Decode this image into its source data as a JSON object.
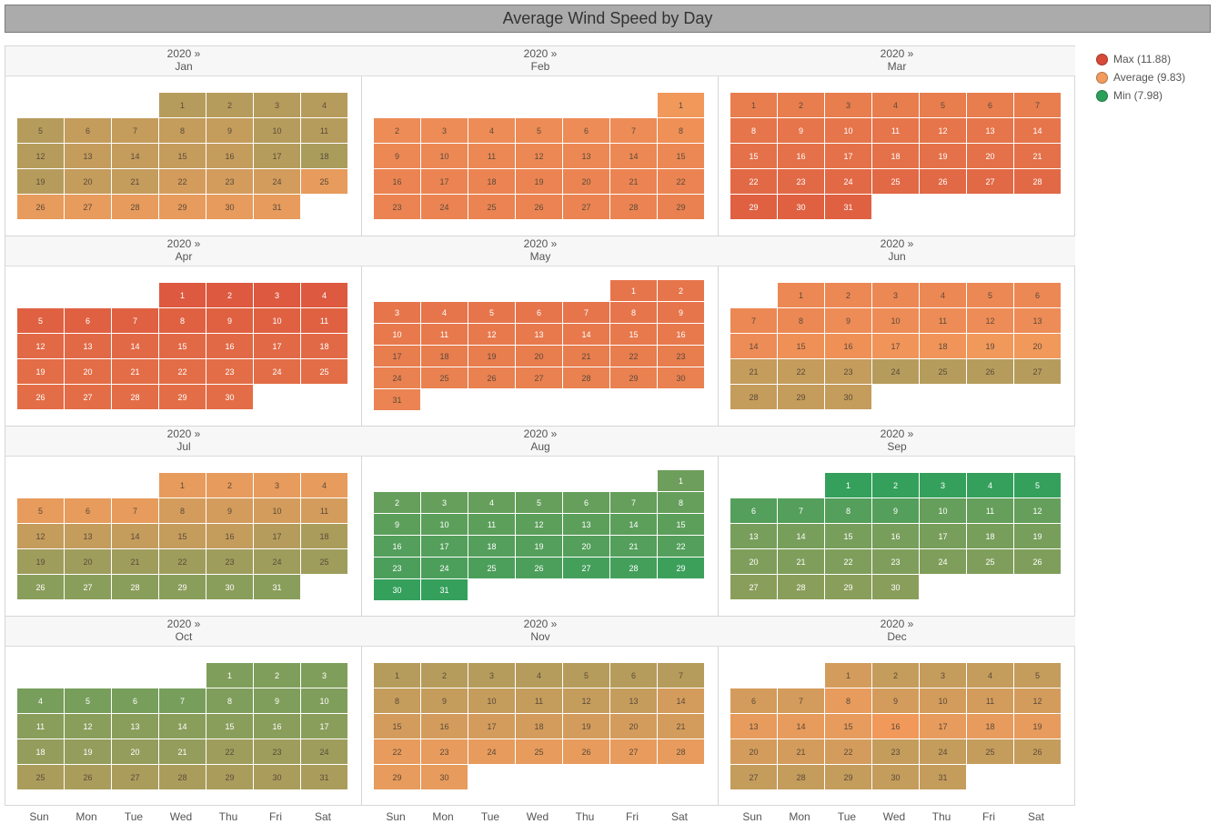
{
  "title": "Average Wind Speed by Day",
  "colors": {
    "max": "#d84a38",
    "average": "#f29b5c",
    "min": "#2ba05b"
  },
  "legend": [
    {
      "label": "Max (11.88)",
      "color": "#d84a38"
    },
    {
      "label": "Average (9.83)",
      "color": "#f29b5c"
    },
    {
      "label": "Min (7.98)",
      "color": "#2ba05b"
    }
  ],
  "weekdays": [
    "Sun",
    "Mon",
    "Tue",
    "Wed",
    "Thu",
    "Fri",
    "Sat"
  ],
  "months": [
    {
      "year": "2020 »",
      "name": "Jan"
    },
    {
      "year": "2020 »",
      "name": "Feb"
    },
    {
      "year": "2020 »",
      "name": "Mar"
    },
    {
      "year": "2020 »",
      "name": "Apr"
    },
    {
      "year": "2020 »",
      "name": "May"
    },
    {
      "year": "2020 »",
      "name": "Jun"
    },
    {
      "year": "2020 »",
      "name": "Jul"
    },
    {
      "year": "2020 »",
      "name": "Aug"
    },
    {
      "year": "2020 »",
      "name": "Sep"
    },
    {
      "year": "2020 »",
      "name": "Oct"
    },
    {
      "year": "2020 »",
      "name": "Nov"
    },
    {
      "year": "2020 »",
      "name": "Dec"
    }
  ],
  "chart_data": {
    "type": "heatmap",
    "title": "Average Wind Speed by Day",
    "year": 2020,
    "color_scale": {
      "min": 7.98,
      "average": 9.83,
      "max": 11.88
    },
    "months": [
      {
        "name": "Jan",
        "start_weekday": 3,
        "values": [
          9.5,
          9.5,
          9.5,
          9.5,
          9.5,
          9.6,
          9.6,
          9.6,
          9.6,
          9.5,
          9.5,
          9.5,
          9.6,
          9.6,
          9.6,
          9.6,
          9.5,
          9.4,
          9.5,
          9.6,
          9.6,
          9.7,
          9.7,
          9.7,
          9.8,
          9.8,
          9.8,
          9.8,
          9.8,
          9.8,
          9.8
        ]
      },
      {
        "name": "Feb",
        "start_weekday": 6,
        "values": [
          9.9,
          10.2,
          10.2,
          10.2,
          10.2,
          10.2,
          10.2,
          10.1,
          10.3,
          10.3,
          10.3,
          10.3,
          10.3,
          10.3,
          10.3,
          10.4,
          10.4,
          10.4,
          10.4,
          10.4,
          10.4,
          10.4,
          10.4,
          10.4,
          10.4,
          10.4,
          10.4,
          10.4,
          10.5
        ]
      },
      {
        "name": "Mar",
        "start_weekday": 0,
        "values": [
          10.6,
          10.6,
          10.6,
          10.6,
          10.6,
          10.6,
          10.6,
          10.8,
          10.8,
          10.8,
          10.8,
          10.8,
          10.8,
          10.8,
          10.9,
          10.9,
          10.9,
          10.9,
          10.9,
          10.9,
          10.9,
          11.1,
          11.1,
          11.1,
          11.1,
          11.1,
          11.1,
          11.1,
          11.3,
          11.3,
          11.3
        ]
      },
      {
        "name": "Apr",
        "start_weekday": 3,
        "values": [
          11.5,
          11.5,
          11.5,
          11.5,
          11.3,
          11.3,
          11.3,
          11.3,
          11.3,
          11.3,
          11.3,
          11.1,
          11.1,
          11.1,
          11.1,
          11.1,
          11.1,
          11.1,
          11.0,
          11.0,
          11.0,
          11.0,
          11.0,
          11.0,
          11.0,
          11.0,
          11.0,
          11.0,
          11.0,
          11.0
        ]
      },
      {
        "name": "May",
        "start_weekday": 5,
        "values": [
          10.8,
          10.8,
          10.8,
          10.8,
          10.8,
          10.8,
          10.8,
          10.8,
          10.8,
          10.7,
          10.7,
          10.7,
          10.7,
          10.7,
          10.7,
          10.7,
          10.6,
          10.6,
          10.6,
          10.6,
          10.6,
          10.6,
          10.6,
          10.5,
          10.5,
          10.5,
          10.5,
          10.5,
          10.5,
          10.5,
          10.4
        ]
      },
      {
        "name": "Jun",
        "start_weekday": 1,
        "values": [
          10.3,
          10.3,
          10.3,
          10.3,
          10.3,
          10.3,
          10.3,
          10.3,
          10.2,
          10.2,
          10.2,
          10.2,
          10.2,
          10.2,
          10.1,
          10.1,
          10.0,
          10.0,
          9.9,
          9.9,
          9.6,
          9.6,
          9.6,
          9.5,
          9.5,
          9.5,
          9.5,
          9.6,
          9.6,
          9.6
        ]
      },
      {
        "name": "Jul",
        "start_weekday": 3,
        "values": [
          9.8,
          9.8,
          9.8,
          9.8,
          9.8,
          9.8,
          9.8,
          9.7,
          9.7,
          9.7,
          9.7,
          9.6,
          9.6,
          9.6,
          9.6,
          9.6,
          9.5,
          9.4,
          9.3,
          9.3,
          9.3,
          9.3,
          9.3,
          9.3,
          9.3,
          9.1,
          9.1,
          9.1,
          9.1,
          9.1,
          9.1
        ]
      },
      {
        "name": "Aug",
        "start_weekday": 6,
        "values": [
          8.8,
          8.7,
          8.7,
          8.7,
          8.7,
          8.7,
          8.7,
          8.7,
          8.6,
          8.6,
          8.6,
          8.6,
          8.6,
          8.6,
          8.6,
          8.5,
          8.5,
          8.5,
          8.5,
          8.5,
          8.5,
          8.5,
          8.4,
          8.4,
          8.4,
          8.4,
          8.3,
          8.3,
          8.2,
          8.1,
          8.1
        ]
      },
      {
        "name": "Sep",
        "start_weekday": 2,
        "values": [
          8.1,
          8.1,
          8.1,
          8.1,
          8.1,
          8.5,
          8.5,
          8.5,
          8.5,
          8.7,
          8.7,
          8.7,
          8.9,
          8.9,
          8.9,
          8.9,
          8.9,
          8.9,
          8.9,
          9.0,
          9.0,
          9.0,
          9.0,
          9.0,
          9.0,
          9.0,
          9.1,
          9.1,
          9.1,
          9.1
        ]
      },
      {
        "name": "Oct",
        "start_weekday": 4,
        "values": [
          9.0,
          9.0,
          9.0,
          8.9,
          8.9,
          8.9,
          8.9,
          9.0,
          9.0,
          9.0,
          9.1,
          9.1,
          9.1,
          9.1,
          9.1,
          9.1,
          9.1,
          9.2,
          9.2,
          9.2,
          9.2,
          9.3,
          9.3,
          9.3,
          9.4,
          9.4,
          9.4,
          9.4,
          9.4,
          9.4,
          9.4
        ]
      },
      {
        "name": "Nov",
        "start_weekday": 0,
        "values": [
          9.5,
          9.5,
          9.5,
          9.5,
          9.5,
          9.5,
          9.5,
          9.6,
          9.6,
          9.6,
          9.6,
          9.6,
          9.6,
          9.7,
          9.7,
          9.7,
          9.7,
          9.7,
          9.7,
          9.7,
          9.7,
          9.8,
          9.8,
          9.8,
          9.8,
          9.8,
          9.8,
          9.8,
          9.8,
          9.8
        ]
      },
      {
        "name": "Dec",
        "start_weekday": 2,
        "values": [
          9.7,
          9.6,
          9.6,
          9.6,
          9.6,
          9.7,
          9.7,
          9.8,
          9.7,
          9.7,
          9.7,
          9.7,
          9.8,
          9.8,
          9.8,
          9.9,
          9.8,
          9.8,
          9.8,
          9.7,
          9.7,
          9.7,
          9.6,
          9.6,
          9.6,
          9.6,
          9.6,
          9.6,
          9.6,
          9.6,
          9.6
        ]
      }
    ]
  }
}
